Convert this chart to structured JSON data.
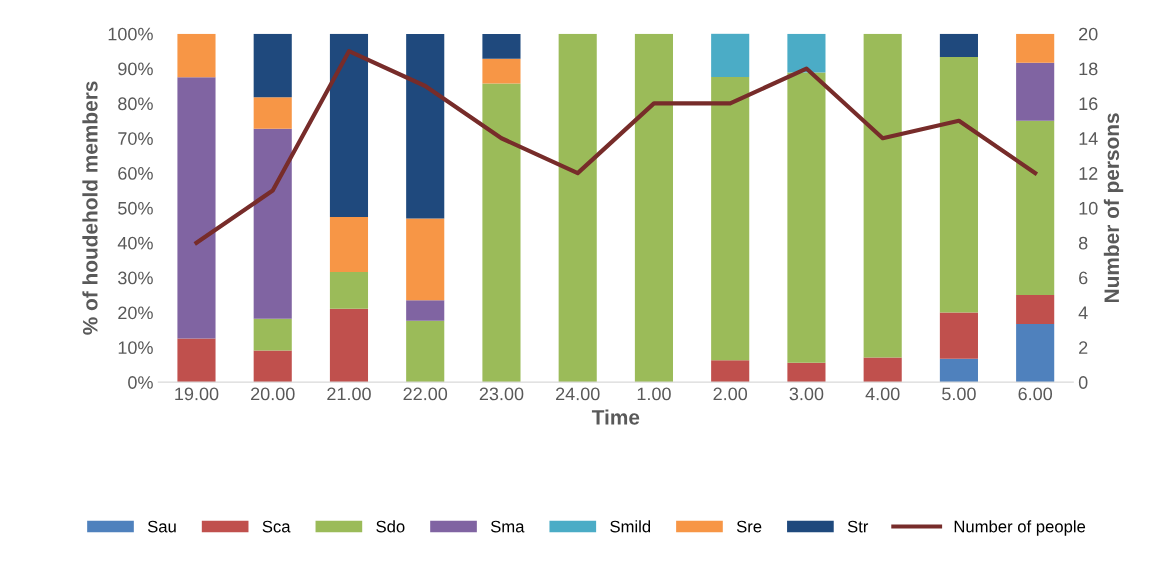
{
  "chart_data": {
    "type": "bar",
    "stacked": true,
    "xlabel": "Time",
    "ylabel": "% of houdehold members",
    "y2label": "Number of persons",
    "categories": [
      "19.00",
      "20.00",
      "21.00",
      "22.00",
      "23.00",
      "24.00",
      "1.00",
      "2.00",
      "3.00",
      "4.00",
      "5.00",
      "6.00"
    ],
    "ylim": [
      0,
      100
    ],
    "yticks": [
      {
        "value": 0,
        "label": "0%"
      },
      {
        "value": 10,
        "label": "10%"
      },
      {
        "value": 20,
        "label": "20%"
      },
      {
        "value": 30,
        "label": "30%"
      },
      {
        "value": 40,
        "label": "40%"
      },
      {
        "value": 50,
        "label": "50%"
      },
      {
        "value": 60,
        "label": "60%"
      },
      {
        "value": 70,
        "label": "70%"
      },
      {
        "value": 80,
        "label": "80%"
      },
      {
        "value": 90,
        "label": "90%"
      },
      {
        "value": 100,
        "label": "100%"
      }
    ],
    "y2lim": [
      0,
      20
    ],
    "y2ticks": [
      0,
      2,
      4,
      6,
      8,
      10,
      12,
      14,
      16,
      18,
      20
    ],
    "legend": "bottom",
    "grid": false,
    "marker": "none",
    "line_style": "solid",
    "series": [
      {
        "name": "Sau",
        "color": "#4f81bd",
        "values": [
          0,
          0,
          0,
          0,
          0,
          0,
          0,
          0,
          0,
          0,
          6.7,
          16.7
        ]
      },
      {
        "name": "Sca",
        "color": "#c0504d",
        "values": [
          12.5,
          9.1,
          21.1,
          0,
          0,
          0,
          0,
          6.3,
          5.6,
          7.1,
          13.3,
          8.3
        ]
      },
      {
        "name": "Sdo",
        "color": "#9bbb59",
        "values": [
          0,
          9.1,
          10.5,
          17.6,
          85.7,
          100,
          100,
          81.3,
          83.3,
          92.9,
          73.3,
          50
        ]
      },
      {
        "name": "Sma",
        "color": "#8064a2",
        "values": [
          75,
          54.5,
          0,
          5.9,
          0,
          0,
          0,
          0,
          0,
          0,
          0,
          16.7
        ]
      },
      {
        "name": "Smild",
        "color": "#4bacc6",
        "values": [
          0,
          0,
          0,
          0,
          0,
          0,
          0,
          12.5,
          11.1,
          0,
          0,
          0
        ]
      },
      {
        "name": "Sre",
        "color": "#f79646",
        "values": [
          12.5,
          9.1,
          15.8,
          23.5,
          7.1,
          0,
          0,
          0,
          0,
          0,
          0,
          8.3
        ]
      },
      {
        "name": "Str",
        "color": "#1f497d",
        "values": [
          0,
          18.2,
          52.6,
          52.9,
          7.1,
          0,
          0,
          0,
          0,
          0,
          6.7,
          0
        ]
      },
      {
        "name": "Number of people",
        "color": "#772c2a",
        "type": "line",
        "axis": "y2",
        "values": [
          8,
          11,
          19,
          17,
          14,
          12,
          16,
          16,
          18,
          14,
          15,
          12
        ]
      }
    ]
  }
}
